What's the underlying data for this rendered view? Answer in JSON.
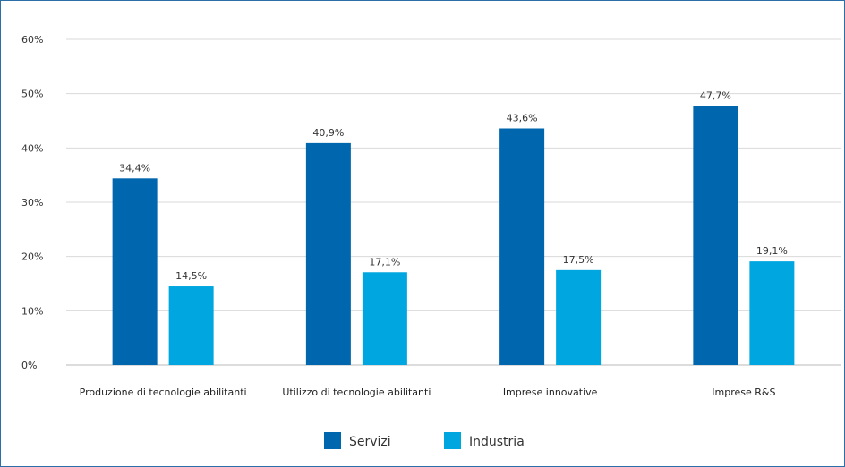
{
  "chart_data": {
    "type": "bar",
    "categories": [
      "Produzione di tecnologie abilitanti",
      "Utilizzo di tecnologie abilitanti",
      "Imprese innovative",
      "Imprese R&S"
    ],
    "series": [
      {
        "name": "Servizi",
        "color": "#0066ad",
        "values": [
          34.4,
          40.9,
          43.6,
          47.7
        ],
        "labels": [
          "34,4%",
          "40,9%",
          "43,6%",
          "47,7%"
        ]
      },
      {
        "name": "Industria",
        "color": "#00a6e0",
        "values": [
          14.5,
          17.1,
          17.5,
          19.1
        ],
        "labels": [
          "14,5%",
          "17,1%",
          "17,5%",
          "19,1%"
        ]
      }
    ],
    "ylim": [
      0,
      60
    ],
    "yticks": [
      0,
      10,
      20,
      30,
      40,
      50,
      60
    ],
    "ytick_labels": [
      "0%",
      "10%",
      "20%",
      "30%",
      "40%",
      "50%",
      "60%"
    ],
    "grid": true,
    "legend": "bottom-center",
    "title": "",
    "xlabel": "",
    "ylabel": ""
  }
}
